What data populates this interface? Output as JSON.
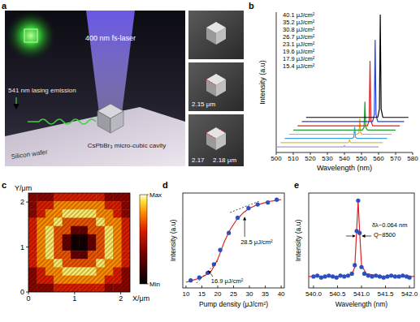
{
  "schematic": {
    "label": "a",
    "laser": "400 nm fs-laser",
    "emission": "541 nm lasing emission",
    "cavity": "CsPbBr₃ micro-cubic cavity",
    "substrate": "Silicon wafer",
    "sem_labels": [
      "2.15 μm",
      "2.17",
      "2.18 μm"
    ]
  },
  "chart_data": [
    {
      "type": "line",
      "title": "b",
      "xlabel": "Wavelength (nm)",
      "ylabel": "Intensity (a.u)",
      "xlim": [
        500,
        580
      ],
      "xticks": [
        500,
        510,
        520,
        530,
        540,
        550,
        560,
        570,
        580
      ],
      "ylim": [
        0,
        100
      ],
      "tick_labels": "x",
      "legend": "upper-left",
      "series": [
        {
          "name": "15.4 μJ/cm²",
          "color": "#a898dc",
          "x": [
            500,
            538.5,
            539.5,
            540,
            540.5,
            541.5,
            560
          ],
          "values": [
            4,
            4,
            4,
            5,
            4,
            4,
            4
          ]
        },
        {
          "name": "17.9 μJ/cm²",
          "color": "#d8c040",
          "x": [
            502.5,
            541.5,
            542.5,
            543,
            543.5,
            544.5,
            562.5
          ],
          "values": [
            7,
            7,
            7.2,
            9,
            7.2,
            7,
            7
          ]
        },
        {
          "name": "19.6 μJ/cm²",
          "color": "#3aa0e0",
          "x": [
            505,
            544.5,
            545.5,
            546,
            546.5,
            547.5,
            565
          ],
          "values": [
            10,
            10,
            10.8,
            18,
            10.8,
            10,
            10
          ]
        },
        {
          "name": "23.1 μJ/cm²",
          "color": "#f0a020",
          "x": [
            507.5,
            547.5,
            548.5,
            549,
            549.5,
            550.5,
            567.5
          ],
          "values": [
            13,
            13,
            14,
            24,
            14,
            13,
            13
          ]
        },
        {
          "name": "26.7 μJ/cm²",
          "color": "#20a030",
          "x": [
            510,
            550.5,
            551.5,
            552,
            552.5,
            553.5,
            570
          ],
          "values": [
            16,
            16,
            18,
            36,
            18,
            16,
            16
          ]
        },
        {
          "name": "30.8 μJ/cm²",
          "color": "#e02020",
          "x": [
            512.5,
            553.5,
            554.5,
            555,
            555.5,
            556.5,
            572.5
          ],
          "values": [
            19,
            19,
            23,
            65,
            23,
            19,
            19
          ]
        },
        {
          "name": "35.2 μJ/cm²",
          "color": "#2040e0",
          "x": [
            515,
            556.5,
            557.5,
            558,
            558.5,
            559.5,
            575
          ],
          "values": [
            22,
            22,
            27,
            80,
            27,
            22,
            22
          ]
        },
        {
          "name": "40.1 μJ/cm²",
          "color": "#000000",
          "x": [
            517.5,
            559.5,
            560.5,
            561,
            561.5,
            562.5,
            577.5
          ],
          "values": [
            25,
            25,
            31,
            98,
            31,
            25,
            25
          ]
        }
      ]
    },
    {
      "type": "heatmap",
      "title": "c",
      "xlabel": "X/μm",
      "ylabel": "Y/μm",
      "xlim": [
        0,
        2.2
      ],
      "xticks": [
        0,
        1,
        2
      ],
      "ylim": [
        0,
        2.2
      ],
      "yticks": [
        0,
        1,
        2
      ],
      "cells": [
        [
          0.4,
          0.4,
          0.4,
          0.6,
          0.6,
          0.6,
          0.6,
          0.6,
          0.6,
          0.4,
          0.4,
          0.4
        ],
        [
          0.4,
          0.6,
          0.6,
          0.8,
          0.8,
          0.8,
          0.8,
          0.8,
          0.8,
          0.6,
          0.6,
          0.4
        ],
        [
          0.4,
          0.6,
          0.8,
          0.8,
          0.95,
          0.95,
          0.95,
          0.95,
          0.8,
          0.8,
          0.6,
          0.4
        ],
        [
          0.6,
          0.8,
          0.8,
          0.95,
          0.7,
          0.7,
          0.7,
          0.7,
          0.95,
          0.8,
          0.8,
          0.6
        ],
        [
          0.6,
          0.8,
          0.95,
          0.7,
          0.7,
          0.3,
          0.3,
          0.7,
          0.7,
          0.95,
          0.8,
          0.6
        ],
        [
          0.6,
          0.8,
          0.95,
          0.7,
          0.3,
          0.05,
          0.05,
          0.3,
          0.7,
          0.95,
          0.8,
          0.6
        ],
        [
          0.6,
          0.8,
          0.95,
          0.7,
          0.3,
          0.05,
          0.05,
          0.3,
          0.7,
          0.95,
          0.8,
          0.6
        ],
        [
          0.6,
          0.8,
          0.95,
          0.7,
          0.7,
          0.3,
          0.3,
          0.7,
          0.7,
          0.95,
          0.8,
          0.6
        ],
        [
          0.6,
          0.8,
          0.8,
          0.95,
          0.7,
          0.7,
          0.7,
          0.7,
          0.95,
          0.8,
          0.8,
          0.6
        ],
        [
          0.4,
          0.6,
          0.8,
          0.8,
          0.95,
          0.95,
          0.95,
          0.95,
          0.8,
          0.8,
          0.6,
          0.4
        ],
        [
          0.4,
          0.6,
          0.6,
          0.8,
          0.8,
          0.8,
          0.8,
          0.8,
          0.8,
          0.6,
          0.6,
          0.4
        ],
        [
          0.4,
          0.4,
          0.4,
          0.6,
          0.6,
          0.6,
          0.6,
          0.6,
          0.6,
          0.4,
          0.4,
          0.4
        ]
      ],
      "color_range": [
        0,
        1
      ],
      "color_ticks": [
        {
          "value": 1,
          "label": "Max"
        },
        {
          "value": 0,
          "label": "Min"
        }
      ]
    },
    {
      "type": "scatter",
      "title": "d",
      "xlabel": "Pump density (μJ/cm²)",
      "ylabel": "Intensity (a.u)",
      "xlim": [
        9,
        41
      ],
      "xticks": [
        10,
        15,
        20,
        25,
        30,
        35,
        40
      ],
      "ylim": [
        0,
        100
      ],
      "tick_labels": "x",
      "series": [
        {
          "type": "line",
          "color": "#e02020",
          "x": [
            10,
            12,
            14,
            16,
            18,
            20,
            22,
            24,
            26,
            28,
            30,
            32,
            34,
            36,
            38,
            40
          ],
          "values": [
            6,
            8,
            10,
            13,
            18,
            30,
            48,
            62,
            72,
            79,
            84,
            87,
            89,
            91,
            92,
            93
          ]
        },
        {
          "type": "scatter",
          "color": "#2a4fc0",
          "marker": "circle",
          "x": [
            11.5,
            14.2,
            16.9,
            18.8,
            20.8,
            23.5,
            26.3,
            29.7,
            32.6,
            35.8,
            38.6
          ],
          "values": [
            8,
            11,
            16,
            25,
            40,
            58,
            74,
            84,
            88,
            90,
            93
          ]
        }
      ],
      "annotations": [
        {
          "x": 16.9,
          "text": "16.9 μJ/cm²"
        },
        {
          "x": 28.5,
          "text": "28.5 μJ/cm²"
        }
      ]
    },
    {
      "type": "scatter",
      "title": "e",
      "xlabel": "Wavelength (nm)",
      "ylabel": "Intensity (a.u)",
      "xlim": [
        539.9,
        542.1
      ],
      "xticks": [
        {
          "value": 540,
          "label": "540.0"
        },
        540.5,
        {
          "value": 541,
          "label": "541.0"
        },
        541.5,
        {
          "value": 542,
          "label": "542.0"
        }
      ],
      "ylim": [
        0,
        100
      ],
      "tick_labels": "x",
      "series": [
        {
          "type": "line",
          "color": "#e02020",
          "x": [
            539.9,
            540.5,
            540.8,
            540.86,
            540.9,
            540.93,
            540.96,
            541.0,
            541.1,
            541.4,
            542.1
          ],
          "values": [
            12,
            12,
            14,
            22,
            62,
            92,
            60,
            24,
            15,
            12,
            12
          ]
        },
        {
          "type": "scatter",
          "color": "#2a4fc0",
          "marker": "circle",
          "x": [
            540.0,
            540.08,
            540.16,
            540.24,
            540.32,
            540.4,
            540.48,
            540.56,
            540.64,
            540.72,
            540.8,
            540.86,
            540.9,
            540.93,
            540.96,
            541.0,
            541.06,
            541.14,
            541.22,
            541.3,
            541.38,
            541.46,
            541.54,
            541.62,
            541.7,
            541.78,
            541.86,
            541.94,
            542.0
          ],
          "values": [
            12,
            13,
            11,
            12,
            13,
            12,
            11,
            13,
            12,
            13,
            15,
            24,
            60,
            92,
            58,
            22,
            15,
            13,
            12,
            13,
            12,
            11,
            12,
            13,
            12,
            12,
            13,
            12,
            11
          ]
        }
      ],
      "annotations": [
        "δλ~0.064 nm",
        "Q~8500"
      ]
    }
  ]
}
